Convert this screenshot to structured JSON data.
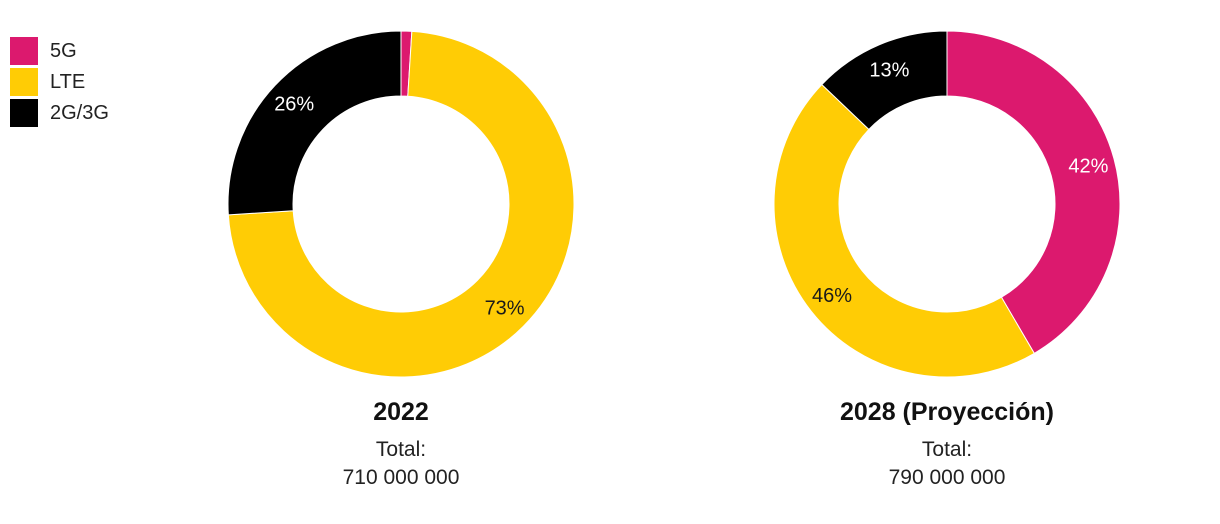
{
  "legend": [
    {
      "label": "5G",
      "color": "#DC196E"
    },
    {
      "label": "LTE",
      "color": "#FFCC05"
    },
    {
      "label": "2G/3G",
      "color": "#000000"
    }
  ],
  "chart_data": [
    {
      "type": "pie",
      "title": "2022",
      "total_label": "Total:",
      "total_value": "710 000 000",
      "slices": [
        {
          "name": "5G",
          "value": 1,
          "color": "#DC196E",
          "label": ""
        },
        {
          "name": "LTE",
          "value": 73,
          "color": "#FFCC05",
          "label": "73%",
          "label_color": "#1a1a1a"
        },
        {
          "name": "2G/3G",
          "value": 26,
          "color": "#000000",
          "label": "26%",
          "label_color": "#ffffff"
        }
      ]
    },
    {
      "type": "pie",
      "title": "2028 (Proyección)",
      "total_label": "Total:",
      "total_value": "790 000 000",
      "slices": [
        {
          "name": "5G",
          "value": 42,
          "color": "#DC196E",
          "label": "42%",
          "label_color": "#ffffff"
        },
        {
          "name": "LTE",
          "value": 46,
          "color": "#FFCC05",
          "label": "46%",
          "label_color": "#1a1a1a"
        },
        {
          "name": "2G/3G",
          "value": 13,
          "color": "#000000",
          "label": "13%",
          "label_color": "#ffffff"
        }
      ]
    }
  ]
}
